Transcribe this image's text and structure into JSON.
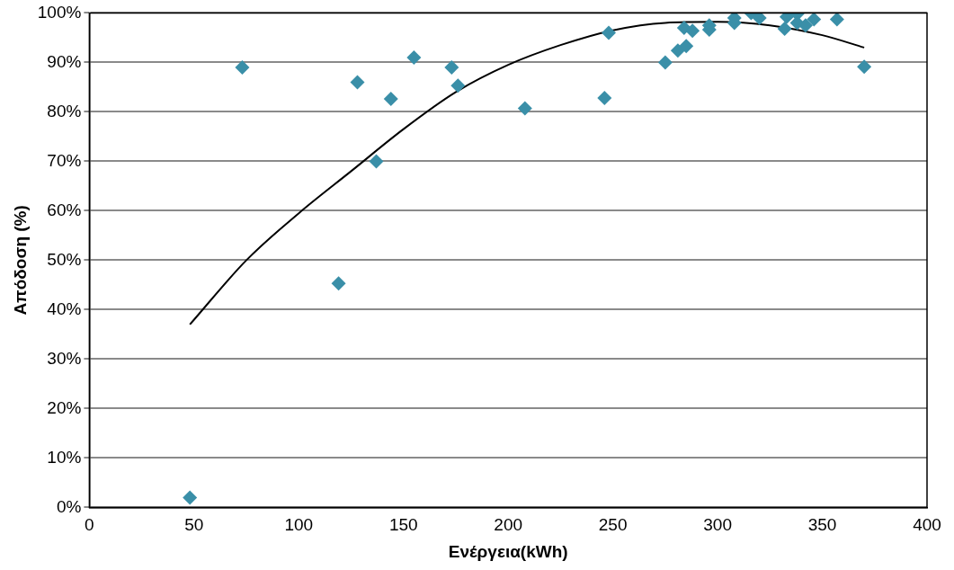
{
  "chart_data": {
    "type": "scatter",
    "xlabel": "Ενέργεια(kWh)",
    "ylabel": "Απόδοση (%)",
    "xlim": [
      0,
      400
    ],
    "xticks": [
      0,
      50,
      100,
      150,
      200,
      250,
      300,
      350,
      400
    ],
    "ylim": [
      0,
      100
    ],
    "yticks": [
      {
        "value": 0,
        "label": "0%"
      },
      {
        "value": 10,
        "label": "10%"
      },
      {
        "value": 20,
        "label": "20%"
      },
      {
        "value": 30,
        "label": "30%"
      },
      {
        "value": 40,
        "label": "40%"
      },
      {
        "value": 50,
        "label": "50%"
      },
      {
        "value": 60,
        "label": "60%"
      },
      {
        "value": 70,
        "label": "70%"
      },
      {
        "value": 80,
        "label": "80%"
      },
      {
        "value": 90,
        "label": "90%"
      },
      {
        "value": 100,
        "label": "100%"
      }
    ],
    "grid": "y",
    "legend": false,
    "marker": "diamond",
    "series": [
      {
        "color": "#3a8fa8",
        "x": [
          48,
          73,
          128,
          137,
          119,
          144,
          155,
          173,
          176,
          208,
          246,
          248,
          275,
          281,
          285,
          284,
          288,
          296,
          296,
          308,
          308,
          316,
          320,
          332,
          333,
          338,
          338,
          342,
          346,
          357,
          370
        ],
        "values": [
          2,
          89,
          86,
          70,
          45.3,
          82.6,
          91,
          89,
          85.3,
          80.7,
          82.8,
          96,
          90,
          92.4,
          93.3,
          97,
          96.4,
          96.6,
          97.5,
          98,
          99,
          100,
          99,
          96.8,
          99.2,
          99.8,
          98,
          97.5,
          98.7,
          98.7,
          89.1
        ]
      },
      {
        "type": "line",
        "color": "#000000",
        "marker": "none",
        "x": [
          48,
          75,
          100,
          125,
          150,
          175,
          200,
          225,
          250,
          275,
          300,
          325,
          350,
          370
        ],
        "values": [
          37,
          50,
          59.5,
          68,
          76.5,
          84,
          89.5,
          93.5,
          96.5,
          98,
          98.2,
          97.5,
          95.5,
          93
        ]
      }
    ]
  }
}
